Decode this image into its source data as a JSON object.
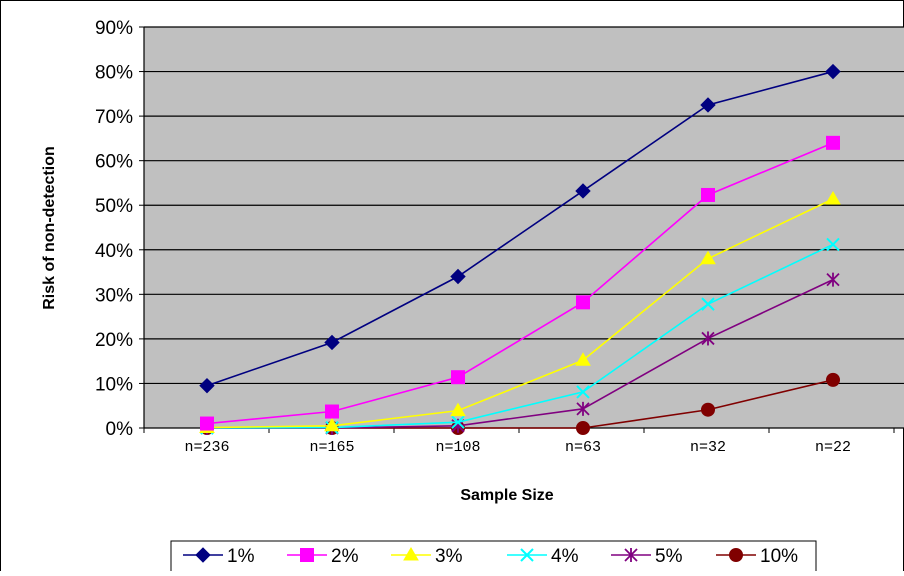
{
  "chart_data": {
    "type": "line",
    "title": "",
    "xlabel": "Sample Size",
    "ylabel": "Risk of non-detection",
    "categories": [
      "n=236",
      "n=165",
      "n=108",
      "n=63",
      "n=32",
      "n=22"
    ],
    "yticks": [
      "0%",
      "10%",
      "20%",
      "30%",
      "40%",
      "50%",
      "60%",
      "70%",
      "80%",
      "90%"
    ],
    "ylim": [
      0,
      90
    ],
    "grid": "horizontal",
    "legend_position": "bottom",
    "plot_background": "#c0c0c0",
    "series": [
      {
        "name": "1%",
        "color": "#000080",
        "marker": "diamond",
        "values": [
          9.5,
          19.2,
          34,
          53.2,
          72.5,
          80
        ]
      },
      {
        "name": "2%",
        "color": "#ff00ff",
        "marker": "square",
        "values": [
          1,
          3.7,
          11.4,
          28.2,
          52.3,
          64
        ]
      },
      {
        "name": "3%",
        "color": "#ffff00",
        "marker": "triangle",
        "values": [
          0.1,
          0.5,
          3.9,
          15.2,
          38,
          51.4
        ]
      },
      {
        "name": "4%",
        "color": "#00ffff",
        "marker": "x",
        "values": [
          0,
          0.1,
          1.3,
          8.1,
          27.8,
          41.2
        ]
      },
      {
        "name": "5%",
        "color": "#800080",
        "marker": "star",
        "values": [
          0,
          0,
          0.5,
          4.3,
          20.1,
          33.3
        ]
      },
      {
        "name": "10%",
        "color": "#800000",
        "marker": "circle",
        "values": [
          0,
          0,
          0,
          0,
          4.1,
          10.8
        ]
      }
    ]
  }
}
